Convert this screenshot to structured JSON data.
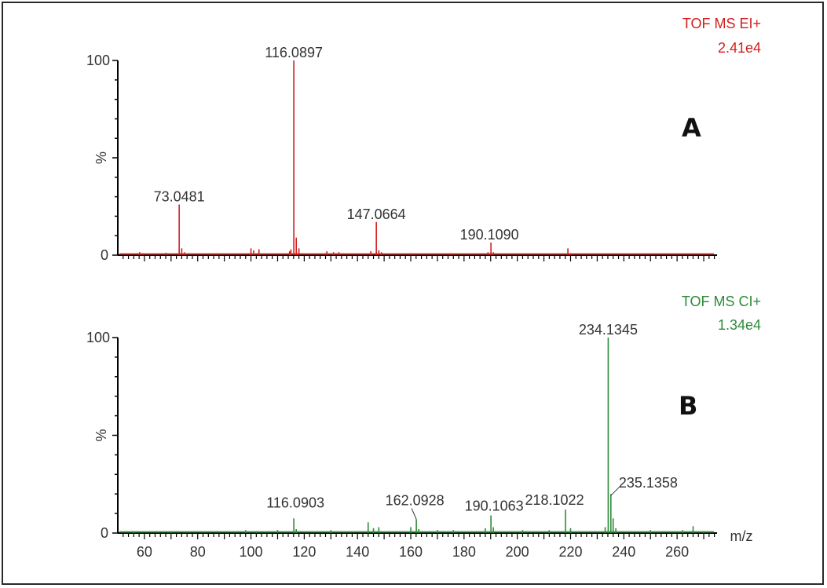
{
  "chart_data": [
    {
      "type": "bar",
      "panel_label": "A",
      "mode_text": "TOF MS EI+",
      "intensity_text": "2.41e4",
      "color": "#d21e1e",
      "ylabel": "%",
      "ylim": [
        0,
        100
      ],
      "yticks": [
        "0",
        "100"
      ],
      "xlim": [
        50,
        275
      ],
      "peaks": [
        {
          "x": 58.2,
          "y": 1.5
        },
        {
          "x": 59.5,
          "y": 1.0
        },
        {
          "x": 68,
          "y": 1.2
        },
        {
          "x": 73.0481,
          "y": 26,
          "label": "73.0481"
        },
        {
          "x": 74,
          "y": 3.5
        },
        {
          "x": 75,
          "y": 1.5
        },
        {
          "x": 87,
          "y": 1.0
        },
        {
          "x": 100,
          "y": 3.5
        },
        {
          "x": 101,
          "y": 2.5
        },
        {
          "x": 103,
          "y": 3.0
        },
        {
          "x": 114.5,
          "y": 2.0
        },
        {
          "x": 115,
          "y": 3.0
        },
        {
          "x": 116.0897,
          "y": 100,
          "label": "116.0897"
        },
        {
          "x": 117,
          "y": 9
        },
        {
          "x": 118,
          "y": 3.5
        },
        {
          "x": 128.5,
          "y": 2.0
        },
        {
          "x": 131,
          "y": 1.5
        },
        {
          "x": 133,
          "y": 1.5
        },
        {
          "x": 145,
          "y": 2.0
        },
        {
          "x": 147.0664,
          "y": 17,
          "label": "147.0664"
        },
        {
          "x": 148,
          "y": 2.5
        },
        {
          "x": 149,
          "y": 1.5
        },
        {
          "x": 160,
          "y": 1.0
        },
        {
          "x": 175,
          "y": 1.0
        },
        {
          "x": 189,
          "y": 1.5
        },
        {
          "x": 190.109,
          "y": 6.5,
          "label": "190.1090"
        },
        {
          "x": 191,
          "y": 1.5
        },
        {
          "x": 219,
          "y": 3.5
        },
        {
          "x": 220,
          "y": 1.0
        }
      ]
    },
    {
      "type": "bar",
      "panel_label": "B",
      "mode_text": "TOF MS CI+",
      "intensity_text": "1.34e4",
      "color": "#2e8b3a",
      "ylabel": "%",
      "xlabel": "m/z",
      "ylim": [
        0,
        100
      ],
      "yticks": [
        "0",
        "100"
      ],
      "xlim": [
        50,
        275
      ],
      "xticks": [
        60,
        80,
        100,
        120,
        140,
        160,
        180,
        200,
        220,
        240,
        260
      ],
      "peaks": [
        {
          "x": 56,
          "y": 1.0
        },
        {
          "x": 70,
          "y": 1.0
        },
        {
          "x": 98,
          "y": 1.5
        },
        {
          "x": 102,
          "y": 1.0
        },
        {
          "x": 110,
          "y": 1.5
        },
        {
          "x": 116.0903,
          "y": 7.5,
          "label": "116.0903"
        },
        {
          "x": 117,
          "y": 2.0
        },
        {
          "x": 130,
          "y": 1.5
        },
        {
          "x": 144,
          "y": 5.5
        },
        {
          "x": 146,
          "y": 2.5
        },
        {
          "x": 148,
          "y": 3.0
        },
        {
          "x": 160,
          "y": 3.0
        },
        {
          "x": 162.0928,
          "y": 7.0,
          "label": "162.0928"
        },
        {
          "x": 163,
          "y": 2.0
        },
        {
          "x": 170,
          "y": 1.5
        },
        {
          "x": 176,
          "y": 1.5
        },
        {
          "x": 188,
          "y": 2.5
        },
        {
          "x": 190.1063,
          "y": 9,
          "label": "190.1063"
        },
        {
          "x": 191,
          "y": 3.0
        },
        {
          "x": 202,
          "y": 1.5
        },
        {
          "x": 212,
          "y": 1.5
        },
        {
          "x": 218.1022,
          "y": 12,
          "label": "218.1022"
        },
        {
          "x": 220,
          "y": 2.5
        },
        {
          "x": 233,
          "y": 3.0
        },
        {
          "x": 234.1345,
          "y": 100,
          "label": "234.1345"
        },
        {
          "x": 235.1358,
          "y": 20,
          "label": "235.1358"
        },
        {
          "x": 236,
          "y": 7.5
        },
        {
          "x": 237,
          "y": 2.5
        },
        {
          "x": 250,
          "y": 1.5
        },
        {
          "x": 262,
          "y": 1.5
        },
        {
          "x": 266,
          "y": 3.5
        },
        {
          "x": 270,
          "y": 1.0
        }
      ]
    }
  ]
}
